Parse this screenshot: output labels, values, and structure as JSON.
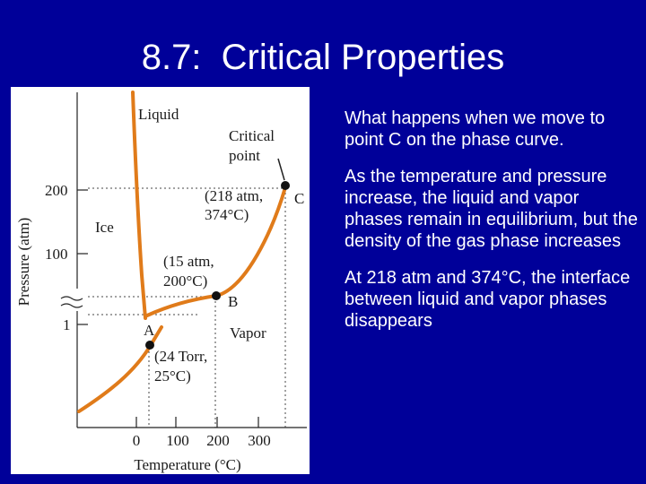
{
  "slide": {
    "title": "8.7:  Critical Properties",
    "paragraphs": [
      "What happens when we move to point C on the phase curve.",
      "As the temperature and pressure increase, the liquid and vapor phases remain in equilibrium, but the density of the gas phase increases",
      "At 218 atm and 374°C, the interface between liquid and vapor phases disappears"
    ]
  },
  "diagram": {
    "curve_color": "#e07b1a",
    "phase_labels": {
      "liquid": "Liquid",
      "ice": "Ice",
      "vapor": "Vapor"
    },
    "critical_label_line1": "Critical",
    "critical_label_line2": "point",
    "y_axis_label": "Pressure (atm)",
    "x_axis_label": "Temperature (°C)",
    "y_ticks": [
      "200",
      "100",
      "1"
    ],
    "x_ticks": [
      "0",
      "100",
      "200",
      "300"
    ],
    "points": {
      "C": {
        "name": "C",
        "line1": "(218 atm,",
        "line2": "374°C)"
      },
      "B": {
        "name": "B",
        "line1": "(15 atm,",
        "line2": "200°C)"
      },
      "A": {
        "name": "A",
        "line1": "(24 Torr,",
        "line2": "25°C)"
      }
    }
  }
}
